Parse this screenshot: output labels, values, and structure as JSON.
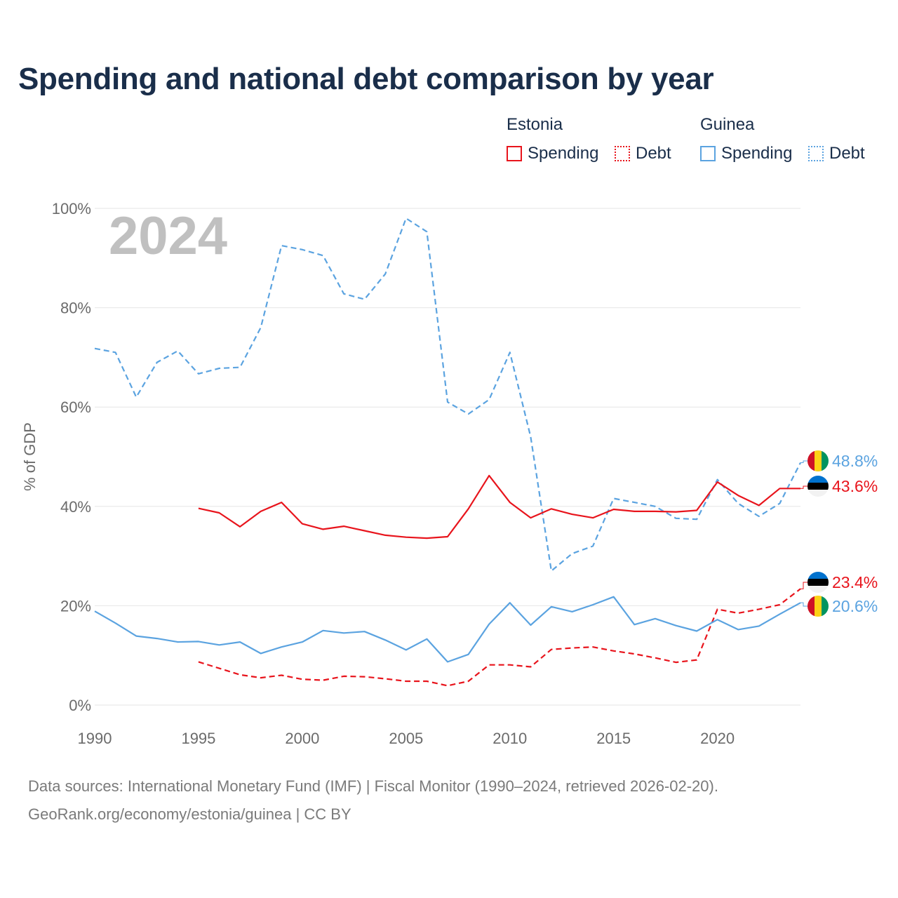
{
  "title": "Spending and national debt comparison by year",
  "legend": {
    "groups": [
      {
        "name": "Estonia",
        "spending_label": "Spending",
        "debt_label": "Debt",
        "color": "#e8141c"
      },
      {
        "name": "Guinea",
        "spending_label": "Spending",
        "debt_label": "Debt",
        "color": "#5ba3e0"
      }
    ]
  },
  "source": {
    "line1": "Data sources: International Monetary Fund (IMF) | Fiscal Monitor (1990–2024, retrieved 2026-02-20).",
    "line2": "GeoRank.org/economy/estonia/guinea | CC BY"
  },
  "chart_data": {
    "type": "line",
    "title": "Spending and national debt comparison by year",
    "year_watermark": "2024",
    "xlabel": "",
    "ylabel": "% of GDP",
    "xlim": [
      1990,
      2024
    ],
    "ylim": [
      0,
      100
    ],
    "x_ticks": [
      1990,
      1995,
      2000,
      2005,
      2010,
      2015,
      2020
    ],
    "y_ticks": [
      0,
      20,
      40,
      60,
      80,
      100
    ],
    "y_tick_labels": [
      "0%",
      "20%",
      "40%",
      "60%",
      "80%",
      "100%"
    ],
    "grid": true,
    "series": [
      {
        "name": "Guinea Debt",
        "country": "Guinea",
        "kind": "Debt",
        "color": "#5ba3e0",
        "dashed": true,
        "end_label": "48.8%",
        "flag": "guinea",
        "x": [
          1990,
          1991,
          1992,
          1993,
          1994,
          1995,
          1996,
          1997,
          1998,
          1999,
          2000,
          2001,
          2002,
          2003,
          2004,
          2005,
          2006,
          2007,
          2008,
          2009,
          2010,
          2011,
          2012,
          2013,
          2014,
          2015,
          2016,
          2017,
          2018,
          2019,
          2020,
          2021,
          2022,
          2023,
          2024
        ],
        "values": [
          71.8,
          71.0,
          62.0,
          69.0,
          71.3,
          66.7,
          67.8,
          68.0,
          76.0,
          92.5,
          91.7,
          90.5,
          82.8,
          81.7,
          86.8,
          98.0,
          95.3,
          61.0,
          58.6,
          61.5,
          71.0,
          54.0,
          27.0,
          30.5,
          32.0,
          41.6,
          40.8,
          40.0,
          37.6,
          37.4,
          45.4,
          40.6,
          38.0,
          40.6,
          48.8
        ]
      },
      {
        "name": "Estonia Spending",
        "country": "Estonia",
        "kind": "Spending",
        "color": "#e8141c",
        "dashed": false,
        "end_label": "43.6%",
        "flag": "estonia",
        "x": [
          1995,
          1996,
          1997,
          1998,
          1999,
          2000,
          2001,
          2002,
          2003,
          2004,
          2005,
          2006,
          2007,
          2008,
          2009,
          2010,
          2011,
          2012,
          2013,
          2014,
          2015,
          2016,
          2017,
          2018,
          2019,
          2020,
          2021,
          2022,
          2023,
          2024
        ],
        "values": [
          39.6,
          38.7,
          35.9,
          39.0,
          40.8,
          36.5,
          35.4,
          36.0,
          35.1,
          34.2,
          33.8,
          33.6,
          33.9,
          39.5,
          46.2,
          40.8,
          37.7,
          39.5,
          38.4,
          37.7,
          39.4,
          39.0,
          39.0,
          38.9,
          39.2,
          44.9,
          42.2,
          40.2,
          43.6,
          43.6
        ]
      },
      {
        "name": "Estonia Debt",
        "country": "Estonia",
        "kind": "Debt",
        "color": "#e8141c",
        "dashed": true,
        "end_label": "23.4%",
        "flag": "estonia",
        "x": [
          1995,
          1996,
          1997,
          1998,
          1999,
          2000,
          2001,
          2002,
          2003,
          2004,
          2005,
          2006,
          2007,
          2008,
          2009,
          2010,
          2011,
          2012,
          2013,
          2014,
          2015,
          2016,
          2017,
          2018,
          2019,
          2020,
          2021,
          2022,
          2023,
          2024
        ],
        "values": [
          8.7,
          7.4,
          6.1,
          5.5,
          6.0,
          5.2,
          5.0,
          5.8,
          5.7,
          5.3,
          4.8,
          4.8,
          3.9,
          4.8,
          8.1,
          8.1,
          7.7,
          11.2,
          11.5,
          11.7,
          10.9,
          10.3,
          9.5,
          8.6,
          9.1,
          19.3,
          18.5,
          19.3,
          20.2,
          23.4
        ]
      },
      {
        "name": "Guinea Spending",
        "country": "Guinea",
        "kind": "Spending",
        "color": "#5ba3e0",
        "dashed": false,
        "end_label": "20.6%",
        "flag": "guinea",
        "x": [
          1990,
          1991,
          1992,
          1993,
          1994,
          1995,
          1996,
          1997,
          1998,
          1999,
          2000,
          2001,
          2002,
          2003,
          2004,
          2005,
          2006,
          2007,
          2008,
          2009,
          2010,
          2011,
          2012,
          2013,
          2014,
          2015,
          2016,
          2017,
          2018,
          2019,
          2020,
          2021,
          2022,
          2023,
          2024
        ],
        "values": [
          18.9,
          16.5,
          13.9,
          13.4,
          12.7,
          12.8,
          12.1,
          12.7,
          10.4,
          11.7,
          12.7,
          15.0,
          14.5,
          14.8,
          13.1,
          11.1,
          13.3,
          8.7,
          10.2,
          16.3,
          20.6,
          16.1,
          19.8,
          18.8,
          20.2,
          21.8,
          16.2,
          17.4,
          16.0,
          14.9,
          17.2,
          15.2,
          15.9,
          18.3,
          20.6
        ]
      }
    ]
  }
}
